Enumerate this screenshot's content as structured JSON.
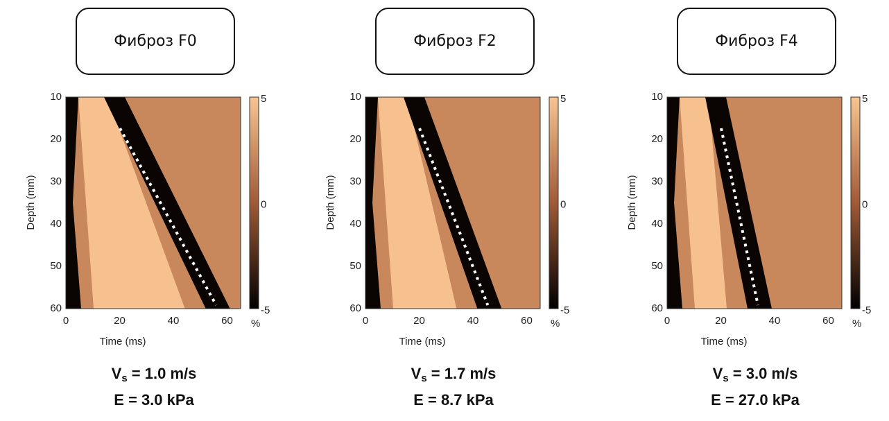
{
  "panels": [
    {
      "title": "Фиброз F0",
      "y_axis_label": "Depth (mm)",
      "x_axis_label": "Time (ms)",
      "y_ticks": [
        10,
        20,
        30,
        40,
        50,
        60
      ],
      "x_ticks": [
        0,
        20,
        40,
        60
      ],
      "colorbar_ticks": [
        5,
        0,
        -5
      ],
      "colorbar_unit": "%",
      "vs_symbol": "V",
      "vs_subscript": "s",
      "vs_value": " = 1.0 m/s",
      "e_value": "E = 3.0 kPa"
    },
    {
      "title": "Фиброз F2",
      "y_axis_label": "Depth (mm)",
      "x_axis_label": "Time (ms)",
      "y_ticks": [
        10,
        20,
        30,
        40,
        50,
        60
      ],
      "x_ticks": [
        0,
        20,
        40,
        60
      ],
      "colorbar_ticks": [
        5,
        0,
        -5
      ],
      "colorbar_unit": "%",
      "vs_symbol": "V",
      "vs_subscript": "s",
      "vs_value": " = 1.7 m/s",
      "e_value": "E = 8.7 kPa"
    },
    {
      "title": "Фиброз F4",
      "y_axis_label": "Depth (mm)",
      "x_axis_label": "Time (ms)",
      "y_ticks": [
        10,
        20,
        30,
        40,
        50,
        60
      ],
      "x_ticks": [
        0,
        20,
        40,
        60
      ],
      "colorbar_ticks": [
        5,
        0,
        -5
      ],
      "colorbar_unit": "%",
      "vs_symbol": "V",
      "vs_subscript": "s",
      "vs_value": " = 3.0 m/s",
      "e_value": "E = 27.0 kPa"
    }
  ]
}
